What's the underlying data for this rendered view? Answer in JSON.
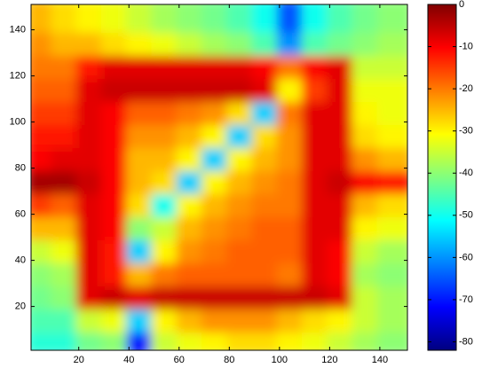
{
  "chart_data": {
    "type": "heatmap",
    "colormap": "jet",
    "x": [
      6,
      16,
      26,
      36,
      46,
      56,
      66,
      76,
      86,
      96,
      106,
      116,
      126,
      136,
      146
    ],
    "y": [
      6,
      16,
      26,
      36,
      46,
      56,
      66,
      76,
      86,
      96,
      106,
      116,
      126,
      136,
      146
    ],
    "z": [
      [
        -48,
        -48,
        -42,
        -40,
        -70,
        -35,
        -32,
        -30,
        -28,
        -28,
        -30,
        -32,
        -35,
        -38,
        -40
      ],
      [
        -45,
        -45,
        -35,
        -32,
        -55,
        -30,
        -25,
        -22,
        -22,
        -22,
        -25,
        -28,
        -30,
        -35,
        -38
      ],
      [
        -42,
        -40,
        -8,
        -6,
        -8,
        -6,
        -6,
        -6,
        -6,
        -6,
        -6,
        -6,
        -8,
        -35,
        -38
      ],
      [
        -40,
        -38,
        -8,
        -12,
        -25,
        -20,
        -18,
        -18,
        -18,
        -18,
        -20,
        -8,
        -10,
        -38,
        -40
      ],
      [
        -35,
        -32,
        -8,
        -12,
        -55,
        -30,
        -22,
        -20,
        -18,
        -18,
        -18,
        -8,
        -10,
        -35,
        -38
      ],
      [
        -25,
        -25,
        -8,
        -10,
        -40,
        -35,
        -25,
        -22,
        -20,
        -18,
        -18,
        -8,
        -8,
        -30,
        -32
      ],
      [
        -15,
        -18,
        -8,
        -10,
        -28,
        -50,
        -30,
        -25,
        -22,
        -20,
        -20,
        -8,
        -8,
        -25,
        -28
      ],
      [
        -3,
        -3,
        -6,
        -10,
        -25,
        -28,
        -55,
        -30,
        -25,
        -22,
        -20,
        -8,
        -6,
        -10,
        -12
      ],
      [
        -10,
        -8,
        -8,
        -10,
        -25,
        -25,
        -30,
        -55,
        -30,
        -25,
        -22,
        -8,
        -8,
        -22,
        -25
      ],
      [
        -12,
        -12,
        -8,
        -10,
        -22,
        -22,
        -25,
        -30,
        -55,
        -28,
        -22,
        -8,
        -8,
        -28,
        -30
      ],
      [
        -15,
        -15,
        -8,
        -10,
        -18,
        -18,
        -20,
        -22,
        -28,
        -55,
        -20,
        -8,
        -8,
        -30,
        -32
      ],
      [
        -18,
        -18,
        -8,
        -6,
        -6,
        -6,
        -6,
        -6,
        -6,
        -8,
        -30,
        -15,
        -8,
        -32,
        -32
      ],
      [
        -20,
        -20,
        -12,
        -8,
        -8,
        -8,
        -8,
        -8,
        -8,
        -10,
        -20,
        -10,
        -8,
        -35,
        -35
      ],
      [
        -22,
        -25,
        -25,
        -28,
        -30,
        -32,
        -35,
        -38,
        -40,
        -45,
        -60,
        -45,
        -42,
        -40,
        -38
      ],
      [
        -25,
        -28,
        -30,
        -32,
        -35,
        -38,
        -40,
        -42,
        -45,
        -50,
        -65,
        -50,
        -45,
        -42,
        -40
      ]
    ],
    "xlim": [
      1,
      151
    ],
    "ylim": [
      1,
      151
    ],
    "xticks": [
      20,
      40,
      60,
      80,
      100,
      120,
      140
    ],
    "yticks": [
      20,
      40,
      60,
      80,
      100,
      120,
      140
    ],
    "clim": [
      -82,
      0
    ],
    "cticks": [
      0,
      -10,
      -20,
      -30,
      -40,
      -50,
      -60,
      -70,
      -80
    ]
  }
}
